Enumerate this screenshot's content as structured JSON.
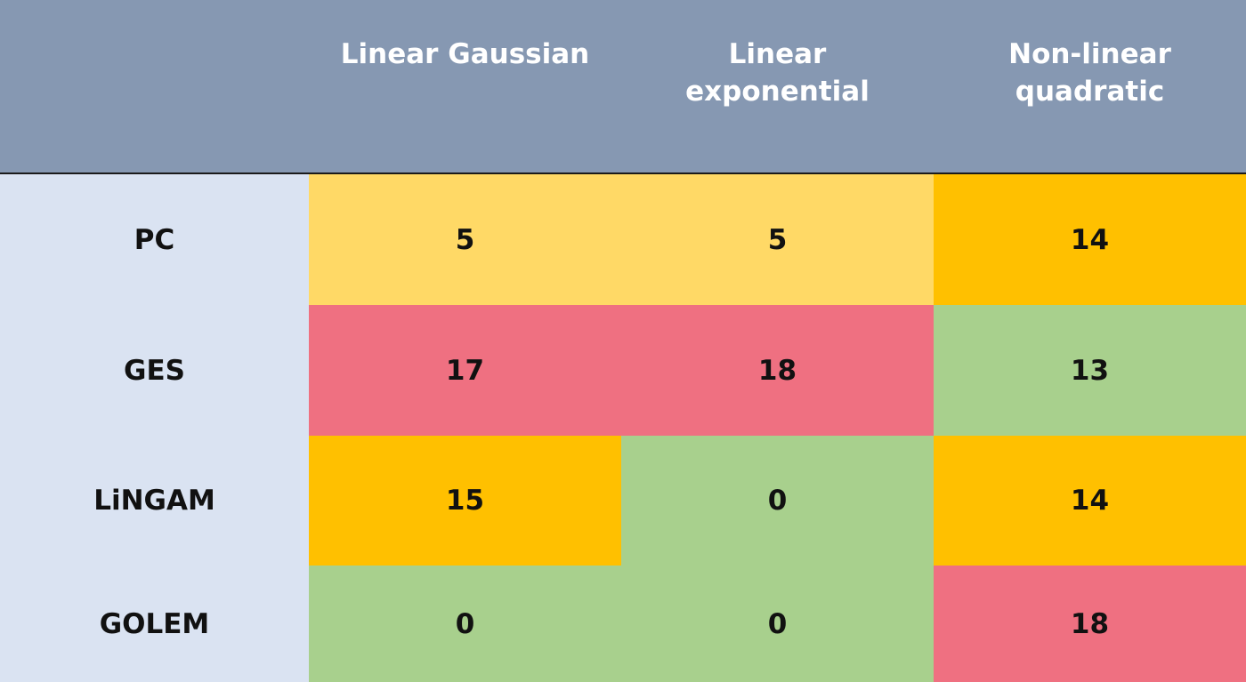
{
  "colors": {
    "header_bg": "#8698b2",
    "row_header_bg": "#dae3f2",
    "low": "#a8d08d",
    "medium": "#ffd966",
    "high": "#ffc000",
    "very_high": "#ef7081"
  },
  "chart_data": {
    "type": "table",
    "columns": [
      "Linear Gaussian",
      "Linear\nexponential",
      "Non-linear\nquadratic"
    ],
    "rows": [
      {
        "label": "PC",
        "values": [
          5,
          5,
          14
        ],
        "levels": [
          "medium",
          "medium",
          "high"
        ]
      },
      {
        "label": "GES",
        "values": [
          17,
          18,
          13
        ],
        "levels": [
          "very_high",
          "very_high",
          "low"
        ]
      },
      {
        "label": "LiNGAM",
        "values": [
          15,
          0,
          14
        ],
        "levels": [
          "high",
          "low",
          "high"
        ]
      },
      {
        "label": "GOLEM",
        "values": [
          0,
          0,
          18
        ],
        "levels": [
          "low",
          "low",
          "very_high"
        ]
      }
    ]
  }
}
